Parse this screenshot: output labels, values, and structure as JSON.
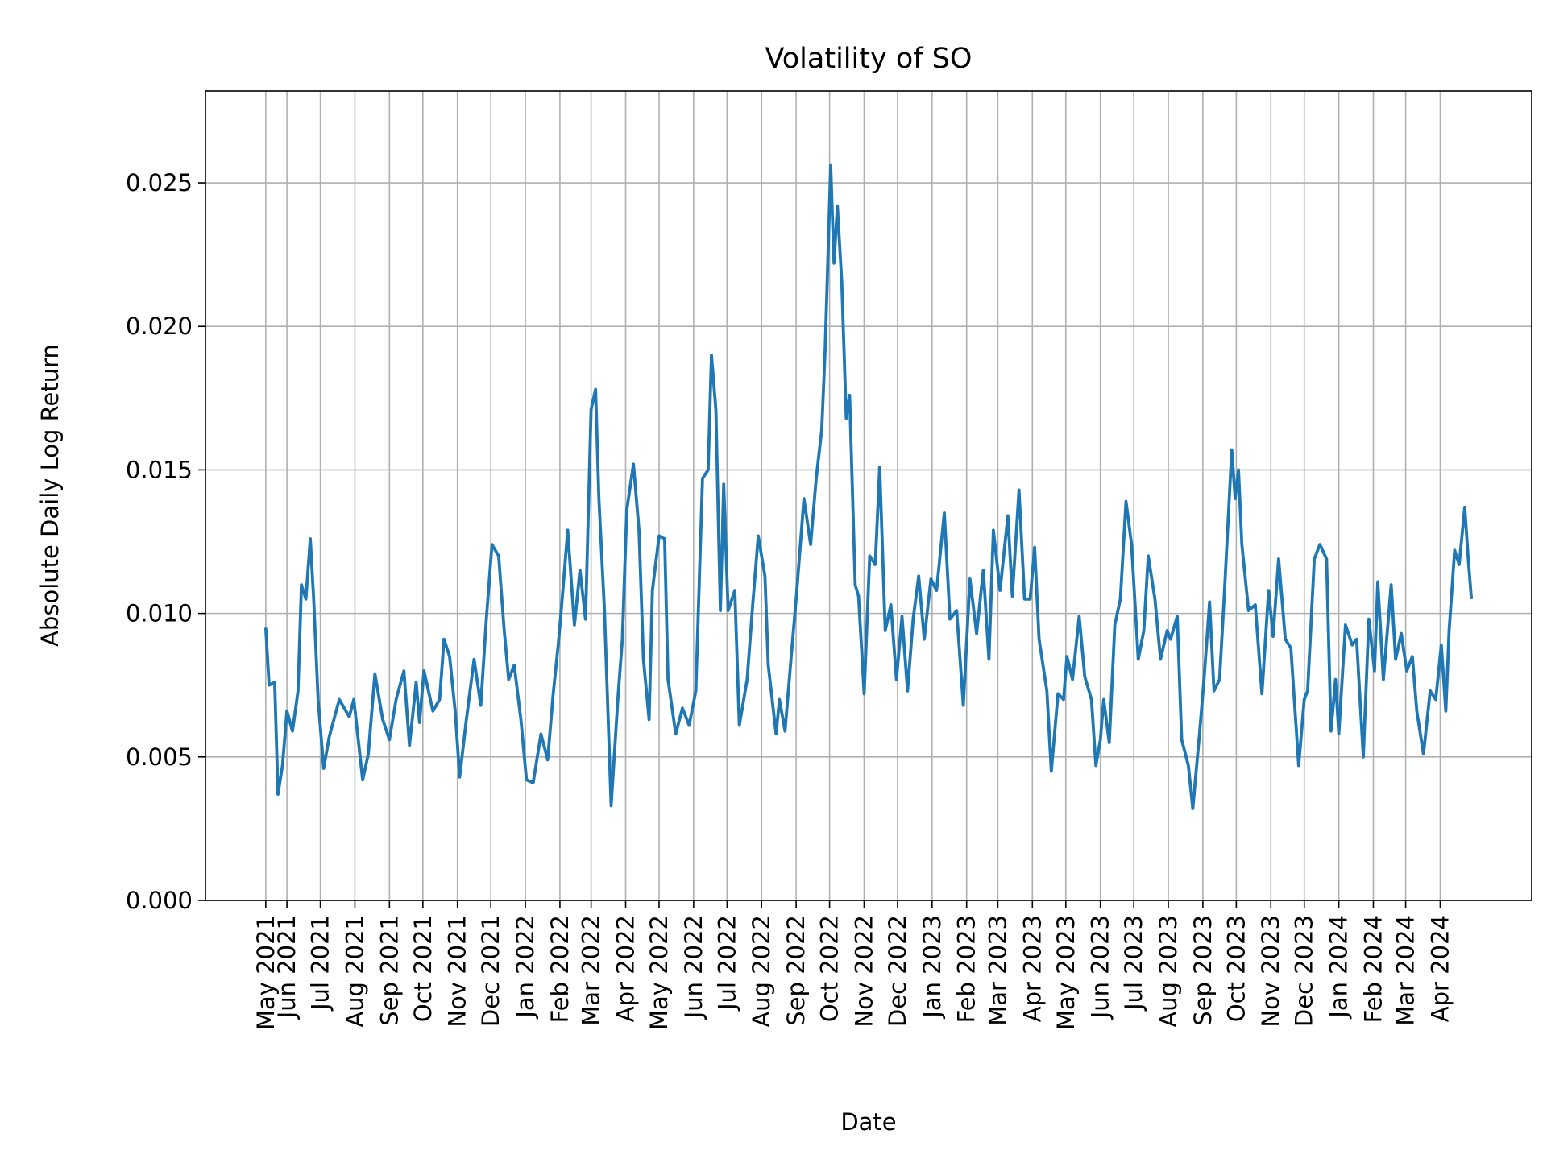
{
  "chart_data": {
    "type": "line",
    "title": "Volatility of SO",
    "xlabel": "Date",
    "ylabel": "Absolute Daily Log Return",
    "ylim": [
      0,
      0.0282
    ],
    "yticks": [
      0,
      0.005,
      0.01,
      0.015,
      0.02,
      0.025
    ],
    "ytick_labels": [
      "0.000",
      "0.005",
      "0.010",
      "0.015",
      "0.020",
      "0.025"
    ],
    "xticks": [
      {
        "date": "2021-05-13",
        "label": "May 2021"
      },
      {
        "date": "2021-06-01",
        "label": "Jun 2021"
      },
      {
        "date": "2021-07-01",
        "label": "Jul 2021"
      },
      {
        "date": "2021-08-01",
        "label": "Aug 2021"
      },
      {
        "date": "2021-09-01",
        "label": "Sep 2021"
      },
      {
        "date": "2021-10-01",
        "label": "Oct 2021"
      },
      {
        "date": "2021-11-01",
        "label": "Nov 2021"
      },
      {
        "date": "2021-12-01",
        "label": "Dec 2021"
      },
      {
        "date": "2022-01-01",
        "label": "Jan 2022"
      },
      {
        "date": "2022-02-01",
        "label": "Feb 2022"
      },
      {
        "date": "2022-03-01",
        "label": "Mar 2022"
      },
      {
        "date": "2022-04-01",
        "label": "Apr 2022"
      },
      {
        "date": "2022-05-01",
        "label": "May 2022"
      },
      {
        "date": "2022-06-01",
        "label": "Jun 2022"
      },
      {
        "date": "2022-07-01",
        "label": "Jul 2022"
      },
      {
        "date": "2022-08-01",
        "label": "Aug 2022"
      },
      {
        "date": "2022-09-01",
        "label": "Sep 2022"
      },
      {
        "date": "2022-10-01",
        "label": "Oct 2022"
      },
      {
        "date": "2022-11-01",
        "label": "Nov 2022"
      },
      {
        "date": "2022-12-01",
        "label": "Dec 2022"
      },
      {
        "date": "2023-01-01",
        "label": "Jan 2023"
      },
      {
        "date": "2023-02-01",
        "label": "Feb 2023"
      },
      {
        "date": "2023-03-01",
        "label": "Mar 2023"
      },
      {
        "date": "2023-04-01",
        "label": "Apr 2023"
      },
      {
        "date": "2023-05-01",
        "label": "May 2023"
      },
      {
        "date": "2023-06-01",
        "label": "Jun 2023"
      },
      {
        "date": "2023-07-01",
        "label": "Jul 2023"
      },
      {
        "date": "2023-08-01",
        "label": "Aug 2023"
      },
      {
        "date": "2023-09-01",
        "label": "Sep 2023"
      },
      {
        "date": "2023-10-01",
        "label": "Oct 2023"
      },
      {
        "date": "2023-11-01",
        "label": "Nov 2023"
      },
      {
        "date": "2023-12-01",
        "label": "Dec 2023"
      },
      {
        "date": "2024-01-01",
        "label": "Jan 2024"
      },
      {
        "date": "2024-02-01",
        "label": "Feb 2024"
      },
      {
        "date": "2024-03-01",
        "label": "Mar 2024"
      },
      {
        "date": "2024-04-01",
        "label": "Apr 2024"
      }
    ],
    "grid": true,
    "line_color": "#1f77b4",
    "series": [
      {
        "x": [
          "2021-05-13",
          "2021-05-16",
          "2021-05-21",
          "2021-05-24",
          "2021-05-28",
          "2021-06-01",
          "2021-06-06",
          "2021-06-11",
          "2021-06-14",
          "2021-06-18",
          "2021-06-22",
          "2021-06-25",
          "2021-06-29",
          "2021-07-04",
          "2021-07-09",
          "2021-07-18",
          "2021-07-27",
          "2021-07-31",
          "2021-08-08",
          "2021-08-13",
          "2021-08-19",
          "2021-08-26",
          "2021-09-01",
          "2021-09-07",
          "2021-09-14",
          "2021-09-19",
          "2021-09-25",
          "2021-09-28",
          "2021-10-02",
          "2021-10-10",
          "2021-10-16",
          "2021-10-20",
          "2021-10-25",
          "2021-10-30",
          "2021-11-03",
          "2021-11-09",
          "2021-11-16",
          "2021-11-22",
          "2021-11-27",
          "2021-12-02",
          "2021-12-08",
          "2021-12-13",
          "2021-12-17",
          "2021-12-22",
          "2021-12-28",
          "2022-01-02",
          "2022-01-08",
          "2022-01-15",
          "2022-01-21",
          "2022-01-26",
          "2022-01-31",
          "2022-02-03",
          "2022-02-08",
          "2022-02-14",
          "2022-02-19",
          "2022-02-24",
          "2022-03-01",
          "2022-03-05",
          "2022-03-08",
          "2022-03-13",
          "2022-03-19",
          "2022-03-25",
          "2022-03-29",
          "2022-04-02",
          "2022-04-08",
          "2022-04-13",
          "2022-04-17",
          "2022-04-22",
          "2022-04-25",
          "2022-05-01",
          "2022-05-06",
          "2022-05-09",
          "2022-05-16",
          "2022-05-22",
          "2022-05-28",
          "2022-06-03",
          "2022-06-09",
          "2022-06-14",
          "2022-06-17",
          "2022-06-21",
          "2022-06-25",
          "2022-06-28",
          "2022-07-02",
          "2022-07-08",
          "2022-07-12",
          "2022-07-19",
          "2022-07-24",
          "2022-07-29",
          "2022-08-04",
          "2022-08-07",
          "2022-08-14",
          "2022-08-17",
          "2022-08-22",
          "2022-08-28",
          "2022-09-01",
          "2022-09-08",
          "2022-09-14",
          "2022-09-19",
          "2022-09-24",
          "2022-09-27",
          "2022-10-02",
          "2022-10-05",
          "2022-10-08",
          "2022-10-12",
          "2022-10-16",
          "2022-10-19",
          "2022-10-24",
          "2022-10-27",
          "2022-11-01",
          "2022-11-06",
          "2022-11-11",
          "2022-11-15",
          "2022-11-20",
          "2022-11-25",
          "2022-11-30",
          "2022-12-05",
          "2022-12-10",
          "2022-12-15",
          "2022-12-20",
          "2022-12-25",
          "2022-12-31",
          "2023-01-05",
          "2023-01-12",
          "2023-01-17",
          "2023-01-23",
          "2023-01-29",
          "2023-02-04",
          "2023-02-10",
          "2023-02-16",
          "2023-02-21",
          "2023-02-25",
          "2023-03-03",
          "2023-03-10",
          "2023-03-14",
          "2023-03-20",
          "2023-03-25",
          "2023-03-30",
          "2023-04-03",
          "2023-04-07",
          "2023-04-14",
          "2023-04-18",
          "2023-04-24",
          "2023-04-29",
          "2023-05-02",
          "2023-05-07",
          "2023-05-13",
          "2023-05-18",
          "2023-05-24",
          "2023-05-28",
          "2023-06-01",
          "2023-06-04",
          "2023-06-09",
          "2023-06-14",
          "2023-06-19",
          "2023-06-24",
          "2023-06-29",
          "2023-07-05",
          "2023-07-10",
          "2023-07-14",
          "2023-07-20",
          "2023-07-25",
          "2023-07-31",
          "2023-08-03",
          "2023-08-09",
          "2023-08-13",
          "2023-08-19",
          "2023-08-23",
          "2023-08-29",
          "2023-09-02",
          "2023-09-07",
          "2023-09-11",
          "2023-09-16",
          "2023-09-20",
          "2023-09-27",
          "2023-09-30",
          "2023-10-03",
          "2023-10-06",
          "2023-10-12",
          "2023-10-18",
          "2023-10-24",
          "2023-10-30",
          "2023-11-03",
          "2023-11-08",
          "2023-11-14",
          "2023-11-19",
          "2023-11-26",
          "2023-12-01",
          "2023-12-04",
          "2023-12-10",
          "2023-12-15",
          "2023-12-21",
          "2023-12-25",
          "2023-12-29",
          "2024-01-01",
          "2024-01-07",
          "2024-01-13",
          "2024-01-17",
          "2024-01-23",
          "2024-01-28",
          "2024-02-02",
          "2024-02-05",
          "2024-02-10",
          "2024-02-17",
          "2024-02-21",
          "2024-02-26",
          "2024-03-02",
          "2024-03-07",
          "2024-03-11",
          "2024-03-17",
          "2024-03-23",
          "2024-03-28",
          "2024-04-02",
          "2024-04-06",
          "2024-04-09",
          "2024-04-14",
          "2024-04-18",
          "2024-04-23",
          "2024-04-26",
          "2024-04-29"
        ],
        "y": [
          0.0095,
          0.0075,
          0.0076,
          0.0037,
          0.0047,
          0.0066,
          0.0059,
          0.0073,
          0.011,
          0.0105,
          0.0126,
          0.0105,
          0.007,
          0.0046,
          0.0057,
          0.007,
          0.0064,
          0.007,
          0.0042,
          0.0051,
          0.0079,
          0.0063,
          0.0056,
          0.007,
          0.008,
          0.0054,
          0.0076,
          0.0062,
          0.008,
          0.0066,
          0.007,
          0.0091,
          0.0085,
          0.0066,
          0.0043,
          0.0063,
          0.0084,
          0.0068,
          0.0098,
          0.0124,
          0.012,
          0.0094,
          0.0077,
          0.0082,
          0.0063,
          0.0042,
          0.0041,
          0.0058,
          0.0049,
          0.0072,
          0.0091,
          0.0105,
          0.0129,
          0.0096,
          0.0115,
          0.0098,
          0.0171,
          0.0178,
          0.014,
          0.0101,
          0.0033,
          0.007,
          0.0091,
          0.0136,
          0.0152,
          0.0129,
          0.0084,
          0.0063,
          0.0108,
          0.0127,
          0.0126,
          0.0077,
          0.0058,
          0.0067,
          0.0061,
          0.0073,
          0.0147,
          0.015,
          0.019,
          0.0171,
          0.0101,
          0.0145,
          0.0101,
          0.0108,
          0.0061,
          0.0077,
          0.0103,
          0.0127,
          0.0113,
          0.0082,
          0.0058,
          0.007,
          0.0059,
          0.0087,
          0.0105,
          0.014,
          0.0124,
          0.0147,
          0.0164,
          0.0192,
          0.0256,
          0.0222,
          0.0242,
          0.0215,
          0.0168,
          0.0176,
          0.011,
          0.0106,
          0.0072,
          0.012,
          0.0117,
          0.0151,
          0.0094,
          0.0103,
          0.0077,
          0.0099,
          0.0073,
          0.0098,
          0.0113,
          0.0091,
          0.0112,
          0.0108,
          0.0135,
          0.0098,
          0.0101,
          0.0068,
          0.0112,
          0.0093,
          0.0115,
          0.0084,
          0.0129,
          0.0108,
          0.0134,
          0.0106,
          0.0143,
          0.0105,
          0.0105,
          0.0123,
          0.0091,
          0.0073,
          0.0045,
          0.0072,
          0.007,
          0.0085,
          0.0077,
          0.0099,
          0.0078,
          0.007,
          0.0047,
          0.0056,
          0.007,
          0.0055,
          0.0096,
          0.0105,
          0.0139,
          0.0124,
          0.0084,
          0.0094,
          0.012,
          0.0105,
          0.0084,
          0.0094,
          0.0091,
          0.0099,
          0.0056,
          0.0047,
          0.0032,
          0.0058,
          0.0077,
          0.0104,
          0.0073,
          0.0077,
          0.0105,
          0.0157,
          0.014,
          0.015,
          0.0124,
          0.0101,
          0.0103,
          0.0072,
          0.0108,
          0.0092,
          0.0119,
          0.0091,
          0.0088,
          0.0047,
          0.007,
          0.0073,
          0.0119,
          0.0124,
          0.0119,
          0.0059,
          0.0077,
          0.0058,
          0.0096,
          0.0089,
          0.0091,
          0.005,
          0.0098,
          0.008,
          0.0111,
          0.0077,
          0.011,
          0.0084,
          0.0093,
          0.008,
          0.0085,
          0.0066,
          0.0051,
          0.0073,
          0.007,
          0.0089,
          0.0066,
          0.0094,
          0.0122,
          0.0117,
          0.0137,
          0.012,
          0.0105
        ]
      }
    ]
  }
}
